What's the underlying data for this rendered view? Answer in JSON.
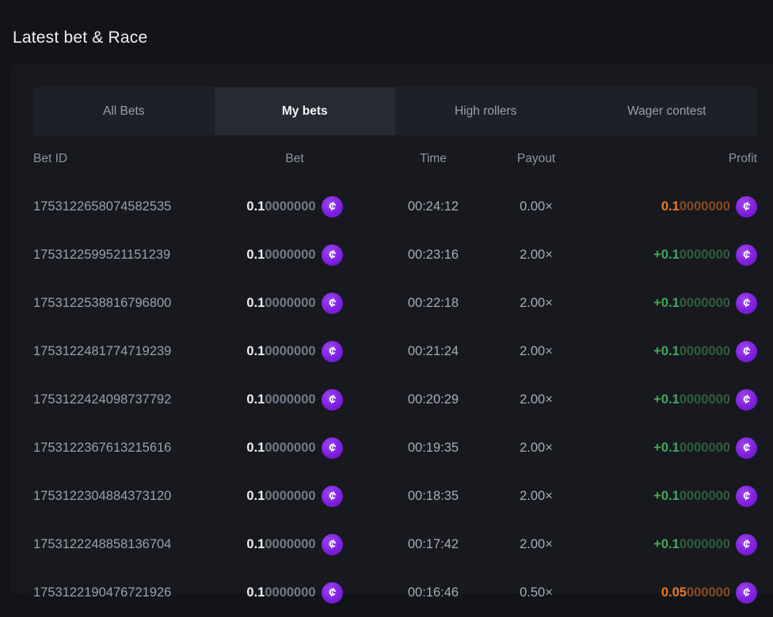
{
  "page": {
    "title": "Latest bet & Race"
  },
  "tabs": [
    {
      "label": "All Bets",
      "active": false
    },
    {
      "label": "My bets",
      "active": true
    },
    {
      "label": "High rollers",
      "active": false
    },
    {
      "label": "Wager contest",
      "active": false
    }
  ],
  "table": {
    "headers": [
      "Bet ID",
      "Bet",
      "Time",
      "Payout",
      "Profit"
    ],
    "currency_icon": "cent-coin-icon",
    "colors": {
      "coin_purple": "#7d1ddd",
      "win_green": "#43a85a",
      "win_green_dim": "#2e5f3a",
      "loss_orange": "#ee7821",
      "loss_orange_dim": "#8a4a1f",
      "active_tab_bg": "#262a31",
      "panel_bg": "#17191f"
    },
    "rows": [
      {
        "bet_id": "1753122658074582535",
        "bet_main": "0.1",
        "bet_zeros": "0000000",
        "time": "00:24:12",
        "payout": "0.00×",
        "profit_main": "0.1",
        "profit_zeros": "0000000",
        "profit_type": "loss"
      },
      {
        "bet_id": "1753122599521151239",
        "bet_main": "0.1",
        "bet_zeros": "0000000",
        "time": "00:23:16",
        "payout": "2.00×",
        "profit_main": "+0.1",
        "profit_zeros": "0000000",
        "profit_type": "win"
      },
      {
        "bet_id": "1753122538816796800",
        "bet_main": "0.1",
        "bet_zeros": "0000000",
        "time": "00:22:18",
        "payout": "2.00×",
        "profit_main": "+0.1",
        "profit_zeros": "0000000",
        "profit_type": "win"
      },
      {
        "bet_id": "1753122481774719239",
        "bet_main": "0.1",
        "bet_zeros": "0000000",
        "time": "00:21:24",
        "payout": "2.00×",
        "profit_main": "+0.1",
        "profit_zeros": "0000000",
        "profit_type": "win"
      },
      {
        "bet_id": "1753122424098737792",
        "bet_main": "0.1",
        "bet_zeros": "0000000",
        "time": "00:20:29",
        "payout": "2.00×",
        "profit_main": "+0.1",
        "profit_zeros": "0000000",
        "profit_type": "win"
      },
      {
        "bet_id": "1753122367613215616",
        "bet_main": "0.1",
        "bet_zeros": "0000000",
        "time": "00:19:35",
        "payout": "2.00×",
        "profit_main": "+0.1",
        "profit_zeros": "0000000",
        "profit_type": "win"
      },
      {
        "bet_id": "1753122304884373120",
        "bet_main": "0.1",
        "bet_zeros": "0000000",
        "time": "00:18:35",
        "payout": "2.00×",
        "profit_main": "+0.1",
        "profit_zeros": "0000000",
        "profit_type": "win"
      },
      {
        "bet_id": "1753122248858136704",
        "bet_main": "0.1",
        "bet_zeros": "0000000",
        "time": "00:17:42",
        "payout": "2.00×",
        "profit_main": "+0.1",
        "profit_zeros": "0000000",
        "profit_type": "win"
      },
      {
        "bet_id": "1753122190476721926",
        "bet_main": "0.1",
        "bet_zeros": "0000000",
        "time": "00:16:46",
        "payout": "0.50×",
        "profit_main": "0.05",
        "profit_zeros": "000000",
        "profit_type": "loss"
      }
    ]
  }
}
